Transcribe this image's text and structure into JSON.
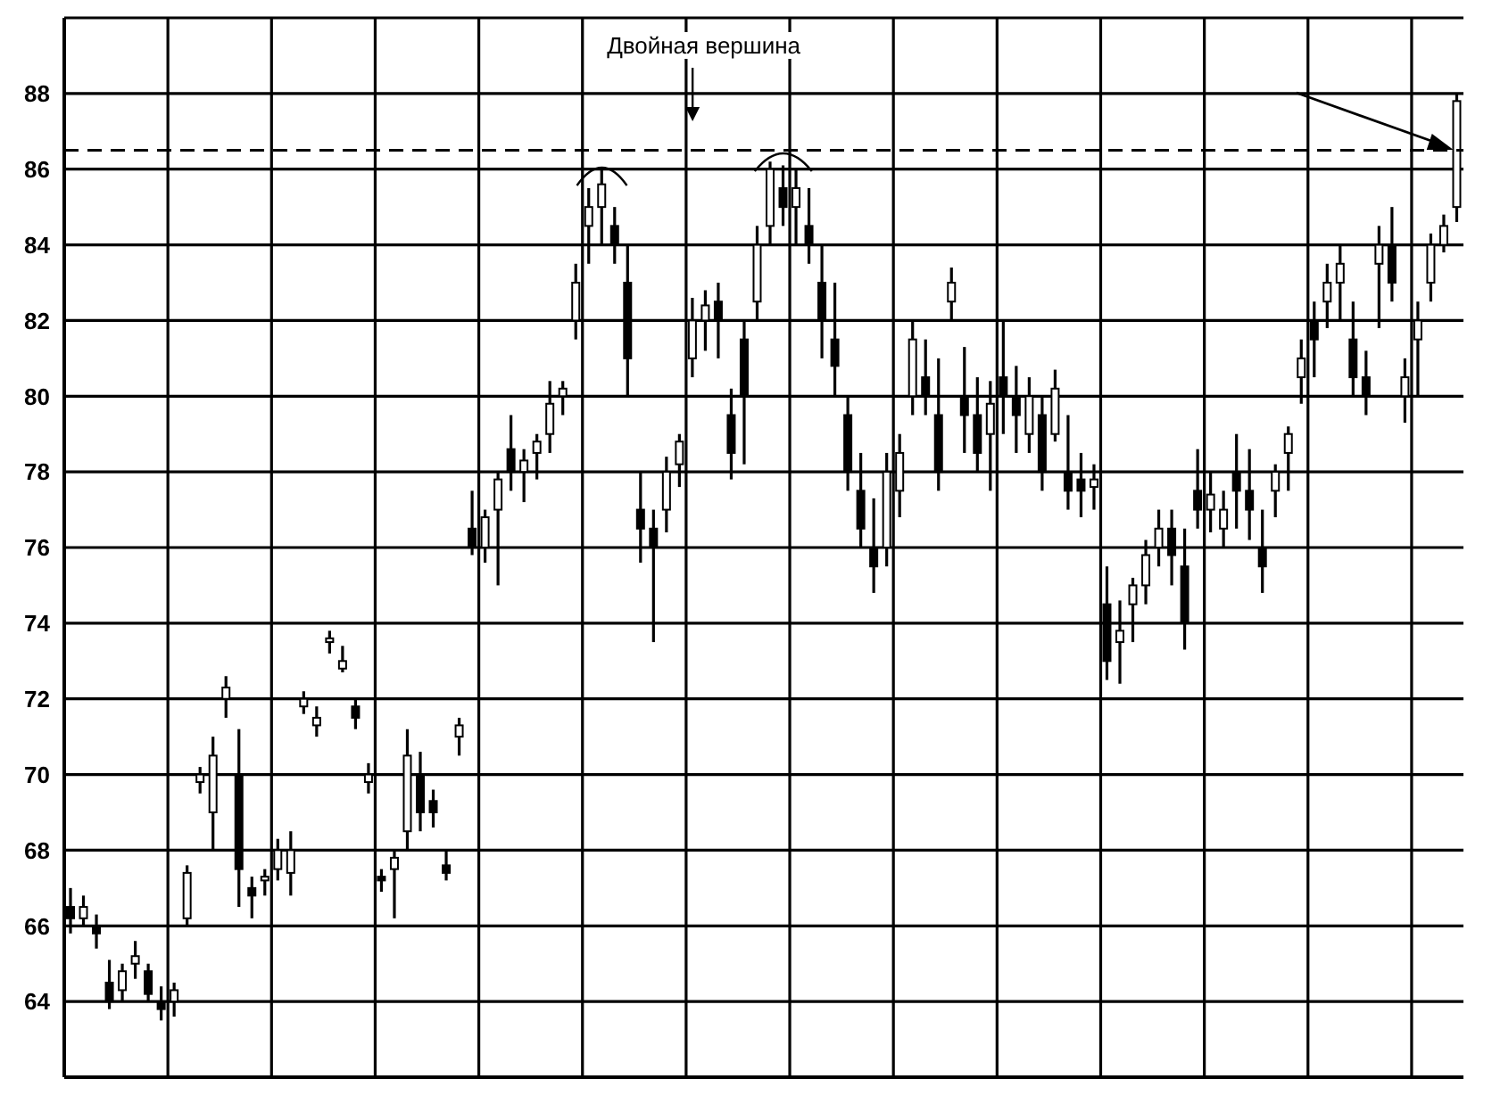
{
  "chart_data": {
    "type": "candlestick",
    "annotations": [
      "Двойная вершина"
    ],
    "categories": [
      null,
      null,
      null,
      null,
      null,
      null,
      null,
      null,
      null,
      null,
      null,
      null,
      null,
      null,
      null,
      null,
      null,
      null,
      null,
      null,
      null,
      null,
      null,
      null,
      null,
      null,
      null,
      null,
      null,
      null,
      null,
      null,
      null,
      null,
      null,
      null,
      null,
      null,
      null,
      null,
      null,
      null,
      null,
      null,
      null,
      null,
      null,
      null,
      null,
      null,
      null,
      null,
      null,
      null,
      null,
      null,
      null,
      null,
      null,
      null,
      null,
      null,
      null,
      null,
      null,
      null,
      null,
      null,
      null,
      null,
      null,
      null,
      null,
      null,
      null,
      null,
      null,
      null,
      null,
      null,
      null,
      null,
      null,
      null,
      null,
      null,
      null,
      null,
      null,
      null,
      null,
      null,
      null,
      null,
      null,
      null,
      null,
      null,
      null,
      null,
      null,
      null,
      null,
      null,
      null,
      null,
      null,
      null
    ],
    "ohlc": [
      [
        66.5,
        67,
        65.8,
        66.2
      ],
      [
        66.2,
        66.8,
        66,
        66.5
      ],
      [
        66,
        66.3,
        65.4,
        65.8
      ],
      [
        64.5,
        65.1,
        63.8,
        64
      ],
      [
        64.3,
        65,
        64,
        64.8
      ],
      [
        65,
        65.6,
        64.6,
        65.2
      ],
      [
        64.8,
        65,
        64,
        64.2
      ],
      [
        64,
        64.4,
        63.5,
        63.8
      ],
      [
        64,
        64.5,
        63.6,
        64.3
      ],
      [
        66.2,
        67.6,
        66,
        67.4
      ],
      [
        69.8,
        70.2,
        69.5,
        70
      ],
      [
        69,
        71,
        68,
        70.5
      ],
      [
        72,
        72.6,
        71.5,
        72.3
      ],
      [
        70,
        71.2,
        66.5,
        67.5
      ],
      [
        67,
        67.3,
        66.2,
        66.8
      ],
      [
        67.2,
        67.5,
        66.8,
        67.3
      ],
      [
        67.5,
        68.3,
        67.2,
        68
      ],
      [
        67.4,
        68.5,
        66.8,
        68
      ],
      [
        71.8,
        72.2,
        71.6,
        72
      ],
      [
        71.3,
        71.8,
        71,
        71.5
      ],
      [
        73.5,
        73.8,
        73.2,
        73.6
      ],
      [
        72.8,
        73.4,
        72.7,
        73
      ],
      [
        71.8,
        72,
        71.2,
        71.5
      ],
      [
        69.8,
        70.3,
        69.5,
        70
      ],
      [
        67.3,
        67.5,
        66.9,
        67.2
      ],
      [
        67.5,
        68,
        66.2,
        67.8
      ],
      [
        68.5,
        71.2,
        68,
        70.5
      ],
      [
        70,
        70.6,
        68.5,
        69
      ],
      [
        69.3,
        69.6,
        68.6,
        69
      ],
      [
        67.6,
        68,
        67.2,
        67.4
      ],
      [
        71,
        71.5,
        70.5,
        71.3
      ],
      [
        76.5,
        77.5,
        75.8,
        76
      ],
      [
        76,
        77,
        75.6,
        76.8
      ],
      [
        77,
        78,
        75,
        77.8
      ],
      [
        78.6,
        79.5,
        77.5,
        78
      ],
      [
        78,
        78.6,
        77.2,
        78.3
      ],
      [
        78.5,
        79,
        77.8,
        78.8
      ],
      [
        79,
        80.4,
        78.5,
        79.8
      ],
      [
        80,
        80.4,
        79.5,
        80.2
      ],
      [
        82,
        83.5,
        81.5,
        83
      ],
      [
        84.5,
        85.5,
        83.5,
        85
      ],
      [
        85,
        86,
        84,
        85.6
      ],
      [
        84.5,
        85,
        83.5,
        84
      ],
      [
        83,
        84,
        80,
        81
      ],
      [
        77,
        78,
        75.6,
        76.5
      ],
      [
        76.5,
        77,
        73.5,
        76
      ],
      [
        77,
        78.4,
        76.4,
        78
      ],
      [
        78.2,
        79,
        77.6,
        78.8
      ],
      [
        81,
        82.6,
        80.5,
        82
      ],
      [
        82,
        82.8,
        81.2,
        82.4
      ],
      [
        82.5,
        83,
        81,
        82
      ],
      [
        79.5,
        80.2,
        77.8,
        78.5
      ],
      [
        81.5,
        82,
        78.2,
        80
      ],
      [
        82.5,
        84.5,
        82,
        84
      ],
      [
        84.5,
        86.2,
        84,
        86
      ],
      [
        85.5,
        86.1,
        84.5,
        85
      ],
      [
        85,
        86,
        84,
        85.5
      ],
      [
        84.5,
        85.5,
        83.5,
        84
      ],
      [
        83,
        84,
        81,
        82
      ],
      [
        81.5,
        83,
        80,
        80.8
      ],
      [
        79.5,
        80,
        77.5,
        78
      ],
      [
        77.5,
        78.5,
        76,
        76.5
      ],
      [
        76,
        77.3,
        74.8,
        75.5
      ],
      [
        76,
        78.5,
        75.5,
        78
      ],
      [
        77.5,
        79,
        76.8,
        78.5
      ],
      [
        80,
        82,
        79.5,
        81.5
      ],
      [
        80.5,
        81.5,
        79.5,
        80
      ],
      [
        79.5,
        81,
        77.5,
        78
      ],
      [
        82.5,
        83.4,
        82,
        83
      ],
      [
        80,
        81.3,
        78.5,
        79.5
      ],
      [
        79.5,
        80.5,
        78,
        78.5
      ],
      [
        79,
        80.4,
        77.5,
        79.8
      ],
      [
        80.5,
        82,
        79,
        80
      ],
      [
        80,
        80.8,
        78.5,
        79.5
      ],
      [
        79,
        80.5,
        78.5,
        80
      ],
      [
        79.5,
        80,
        77.5,
        78
      ],
      [
        79,
        80.7,
        78.8,
        80.2
      ],
      [
        78,
        79.5,
        77,
        77.5
      ],
      [
        77.8,
        78.5,
        76.8,
        77.5
      ],
      [
        77.6,
        78.2,
        77,
        77.8
      ],
      [
        74.5,
        75.5,
        72.5,
        73
      ],
      [
        73.5,
        74.6,
        72.4,
        73.8
      ],
      [
        74.5,
        75.2,
        73.5,
        75
      ],
      [
        75,
        76.2,
        74.5,
        75.8
      ],
      [
        76,
        77,
        75.5,
        76.5
      ],
      [
        76.5,
        77,
        75,
        75.8
      ],
      [
        75.5,
        76.5,
        73.3,
        74
      ],
      [
        77.5,
        78.6,
        76.5,
        77
      ],
      [
        77,
        78,
        76.4,
        77.4
      ],
      [
        76.5,
        77.5,
        76,
        77
      ],
      [
        78,
        79,
        76.5,
        77.5
      ],
      [
        77.5,
        78.6,
        76.2,
        77
      ],
      [
        76,
        77,
        74.8,
        75.5
      ],
      [
        77.5,
        78.2,
        76.8,
        78
      ],
      [
        78.5,
        79.2,
        77.5,
        79
      ],
      [
        80.5,
        81.5,
        79.8,
        81
      ],
      [
        82,
        82.5,
        80.5,
        81.5
      ],
      [
        82.5,
        83.5,
        81.8,
        83
      ],
      [
        83,
        84,
        82,
        83.5
      ],
      [
        81.5,
        82.5,
        80,
        80.5
      ],
      [
        80.5,
        81.2,
        79.5,
        80
      ],
      [
        83.5,
        84.5,
        81.8,
        84
      ],
      [
        84,
        85,
        82.5,
        83
      ],
      [
        80,
        81,
        79.3,
        80.5
      ],
      [
        81.5,
        82.5,
        80,
        82
      ],
      [
        83,
        84.3,
        82.5,
        84
      ],
      [
        84,
        84.8,
        83.8,
        84.5
      ],
      [
        85,
        88,
        84.6,
        87.8
      ]
    ],
    "color": "#000000",
    "ylim": [
      62,
      90
    ],
    "yticks": [
      64,
      66,
      68,
      70,
      72,
      74,
      76,
      78,
      80,
      82,
      84,
      86,
      88
    ],
    "grid": true,
    "tick_labels": "y",
    "ref_lines": [
      {
        "axis": "y",
        "value": 86.5,
        "line_style": "dashed",
        "color": "#000000"
      }
    ]
  }
}
